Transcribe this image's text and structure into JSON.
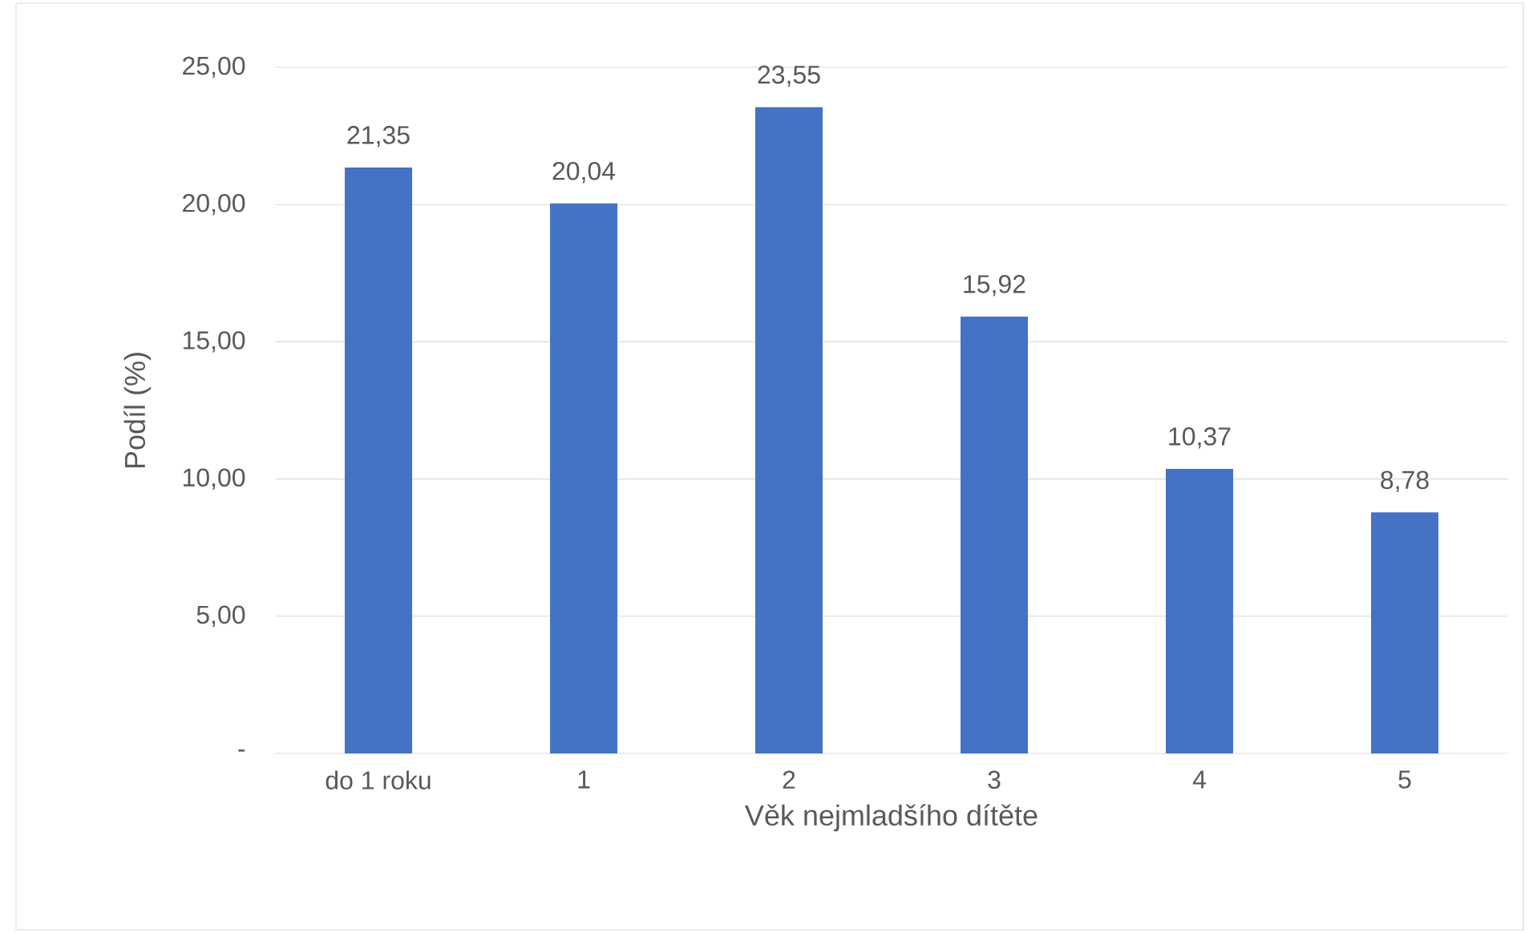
{
  "chart_data": {
    "type": "bar",
    "xlabel": "Věk nejmladšího dítěte",
    "ylabel": "Podíl (%)",
    "categories": [
      "do 1 roku",
      "1",
      "2",
      "3",
      "4",
      "5"
    ],
    "values": [
      21.35,
      20.04,
      23.55,
      15.92,
      10.37,
      8.78
    ],
    "value_labels": [
      "21,35",
      "20,04",
      "23,55",
      "15,92",
      "10,37",
      "8,78"
    ],
    "color": "#4472c4",
    "ylim": [
      0,
      25
    ],
    "yticks": [
      {
        "value": 0,
        "label": "-"
      },
      {
        "value": 5,
        "label": "5,00"
      },
      {
        "value": 10,
        "label": "10,00"
      },
      {
        "value": 15,
        "label": "15,00"
      },
      {
        "value": 20,
        "label": "20,00"
      },
      {
        "value": 25,
        "label": "25,00"
      }
    ],
    "grid": "y"
  }
}
